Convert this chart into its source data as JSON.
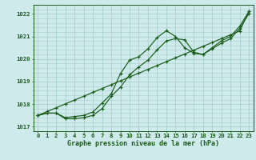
{
  "title": "Graphe pression niveau de la mer (hPa)",
  "bg_color": "#ceeaea",
  "grid_color": "#aacfcf",
  "line_color": "#1a5c1a",
  "xlim": [
    -0.5,
    23.5
  ],
  "ylim": [
    1016.8,
    1022.4
  ],
  "yticks": [
    1017,
    1018,
    1019,
    1020,
    1021,
    1022
  ],
  "xticks": [
    0,
    1,
    2,
    3,
    4,
    5,
    6,
    7,
    8,
    9,
    10,
    11,
    12,
    13,
    14,
    15,
    16,
    17,
    18,
    19,
    20,
    21,
    22,
    23
  ],
  "series1_y": [
    1017.5,
    1017.6,
    1017.6,
    1017.4,
    1017.45,
    1017.5,
    1017.65,
    1018.05,
    1018.45,
    1019.35,
    1019.95,
    1020.1,
    1020.45,
    1020.95,
    1021.25,
    1021.0,
    1020.5,
    1020.25,
    1020.2,
    1020.5,
    1020.8,
    1021.0,
    1021.45,
    1022.1
  ],
  "series2_y": [
    1017.5,
    1017.6,
    1017.6,
    1017.35,
    1017.35,
    1017.4,
    1017.5,
    1017.8,
    1018.35,
    1018.75,
    1019.3,
    1019.65,
    1019.95,
    1020.4,
    1020.8,
    1020.9,
    1020.85,
    1020.3,
    1020.2,
    1020.45,
    1020.7,
    1020.9,
    1021.35,
    1022.0
  ],
  "series3_y": [
    1017.5,
    1017.67,
    1017.84,
    1018.01,
    1018.18,
    1018.35,
    1018.52,
    1018.69,
    1018.86,
    1019.03,
    1019.2,
    1019.37,
    1019.54,
    1019.71,
    1019.88,
    1020.05,
    1020.22,
    1020.39,
    1020.56,
    1020.73,
    1020.9,
    1021.07,
    1021.24,
    1022.1
  ],
  "label_fontsize": 6.0,
  "tick_fontsize": 5.2
}
